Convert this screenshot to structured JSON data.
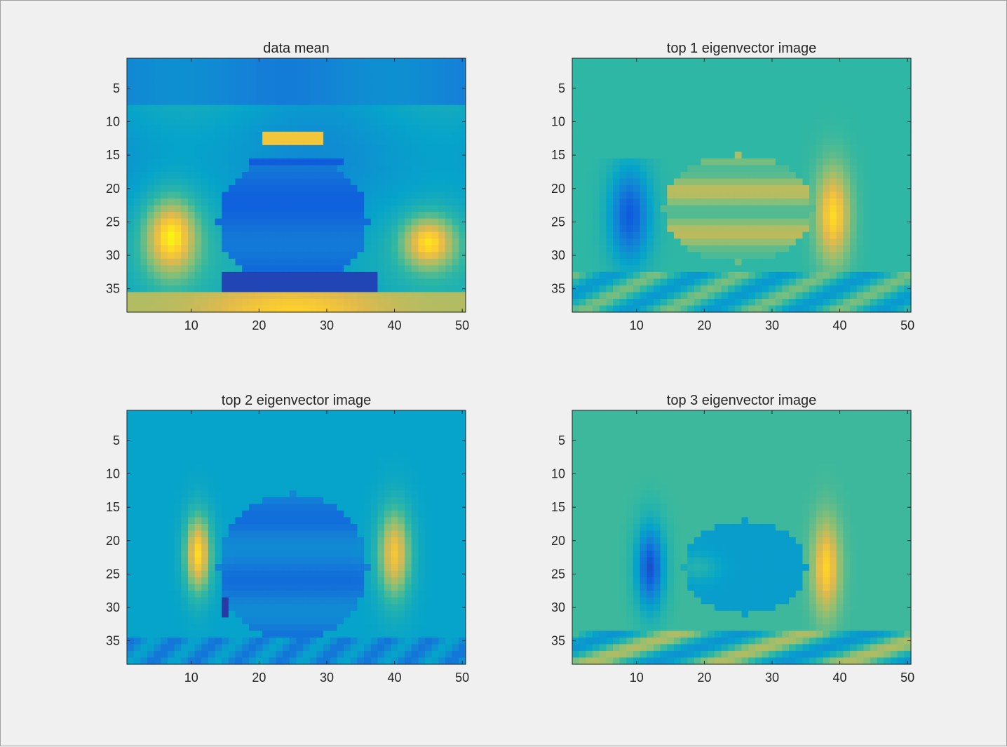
{
  "chart_data": [
    {
      "type": "heatmap",
      "title": "data mean",
      "xlabel": "",
      "ylabel": "",
      "xlim": [
        0.5,
        50.5
      ],
      "ylim": [
        0.5,
        38.5
      ],
      "xticks": [
        10,
        20,
        30,
        40,
        50
      ],
      "yticks": [
        5,
        10,
        15,
        20,
        25,
        30,
        35
      ],
      "colormap": "parula",
      "image_size": [
        38,
        50
      ],
      "content": "teapot mean image"
    },
    {
      "type": "heatmap",
      "title": "top 1 eigenvector image",
      "xlabel": "",
      "ylabel": "",
      "xlim": [
        0.5,
        50.5
      ],
      "ylim": [
        0.5,
        38.5
      ],
      "xticks": [
        10,
        20,
        30,
        40,
        50
      ],
      "yticks": [
        5,
        10,
        15,
        20,
        25,
        30,
        35
      ],
      "colormap": "parula",
      "image_size": [
        38,
        50
      ],
      "content": "eigenvector 1"
    },
    {
      "type": "heatmap",
      "title": "top 2 eigenvector image",
      "xlabel": "",
      "ylabel": "",
      "xlim": [
        0.5,
        50.5
      ],
      "ylim": [
        0.5,
        38.5
      ],
      "xticks": [
        10,
        20,
        30,
        40,
        50
      ],
      "yticks": [
        5,
        10,
        15,
        20,
        25,
        30,
        35
      ],
      "colormap": "parula",
      "image_size": [
        38,
        50
      ],
      "content": "eigenvector 2"
    },
    {
      "type": "heatmap",
      "title": "top 3 eigenvector image",
      "xlabel": "",
      "ylabel": "",
      "xlim": [
        0.5,
        50.5
      ],
      "ylim": [
        0.5,
        38.5
      ],
      "xticks": [
        10,
        20,
        30,
        40,
        50
      ],
      "yticks": [
        5,
        10,
        15,
        20,
        25,
        30,
        35
      ],
      "colormap": "parula",
      "image_size": [
        38,
        50
      ],
      "content": "eigenvector 3"
    }
  ]
}
